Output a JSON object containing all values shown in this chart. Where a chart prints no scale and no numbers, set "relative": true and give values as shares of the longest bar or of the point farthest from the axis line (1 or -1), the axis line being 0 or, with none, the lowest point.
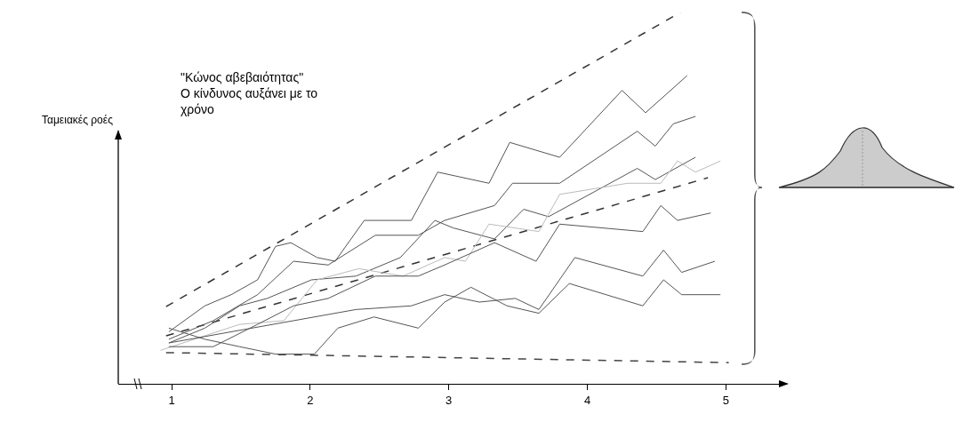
{
  "chart_data": {
    "type": "line",
    "relative": true,
    "ylabel": "Ταμειακές ροές",
    "annotations": [
      "\"Κώνος αβεβαιότητας\"\nΟ κίνδυνος αυξάνει με το\nχρόνο"
    ],
    "xlim": [
      0.615,
      5.44
    ],
    "xticks": [
      1,
      2,
      3,
      4,
      5
    ],
    "marker": "none",
    "line_style": "solid",
    "series": [
      {
        "color": "#333333",
        "line_style": "dashed",
        "x": [
          0.96,
          4.67
        ],
        "values": [
          0.208,
          1.0
        ]
      },
      {
        "color": "#444444",
        "line_style": "dashed",
        "x": [
          0.96,
          5.02
        ],
        "values": [
          0.084,
          0.057
        ]
      },
      {
        "color": "#333333",
        "line_style": "dashed",
        "x": [
          0.96,
          4.87
        ],
        "values": [
          0.129,
          0.555
        ]
      },
      {
        "color": "#555555",
        "x": [
          0.98,
          1.24,
          1.43,
          1.62,
          1.75,
          1.86,
          2.05,
          2.18,
          2.39,
          2.73,
          2.92,
          3.29,
          3.44,
          3.8,
          4.25,
          4.42,
          4.72
        ],
        "values": [
          0.14,
          0.21,
          0.24,
          0.28,
          0.37,
          0.38,
          0.34,
          0.33,
          0.44,
          0.44,
          0.57,
          0.54,
          0.65,
          0.61,
          0.79,
          0.73,
          0.83
        ]
      },
      {
        "color": "#555555",
        "x": [
          0.98,
          1.3,
          1.62,
          1.88,
          2.13,
          2.47,
          2.78,
          2.97,
          3.33,
          3.46,
          3.8,
          4.36,
          4.49,
          4.62,
          4.78
        ],
        "values": [
          0.12,
          0.17,
          0.24,
          0.33,
          0.32,
          0.4,
          0.4,
          0.44,
          0.48,
          0.54,
          0.54,
          0.68,
          0.64,
          0.7,
          0.72
        ]
      },
      {
        "color": "#555555",
        "x": [
          0.98,
          1.24,
          1.49,
          1.69,
          2.01,
          2.33,
          2.65,
          2.9,
          3.03,
          3.33,
          3.54,
          3.72,
          4.36,
          4.49,
          4.78
        ],
        "values": [
          0.11,
          0.15,
          0.21,
          0.23,
          0.28,
          0.29,
          0.34,
          0.44,
          0.42,
          0.39,
          0.47,
          0.45,
          0.58,
          0.55,
          0.61
        ]
      },
      {
        "color": "#bbbbbb",
        "x": [
          0.92,
          1.49,
          1.81,
          2.05,
          2.35,
          2.67,
          2.97,
          3.12,
          3.29,
          3.65,
          3.8,
          4.29,
          4.53,
          4.65,
          4.78,
          4.96
        ],
        "values": [
          0.09,
          0.16,
          0.17,
          0.28,
          0.31,
          0.29,
          0.34,
          0.33,
          0.43,
          0.41,
          0.51,
          0.54,
          0.54,
          0.6,
          0.57,
          0.6
        ]
      },
      {
        "color": "#555555",
        "x": [
          0.98,
          1.3,
          1.62,
          1.88,
          2.13,
          2.47,
          2.78,
          2.97,
          3.33,
          3.63,
          3.8,
          4.4,
          4.53,
          4.65,
          4.89
        ],
        "values": [
          0.1,
          0.1,
          0.16,
          0.21,
          0.23,
          0.29,
          0.29,
          0.32,
          0.38,
          0.33,
          0.43,
          0.41,
          0.48,
          0.44,
          0.46
        ]
      },
      {
        "color": "#555555",
        "x": [
          0.98,
          1.43,
          1.88,
          2.33,
          2.73,
          2.97,
          3.22,
          3.48,
          3.65,
          3.91,
          4.4,
          4.55,
          4.68,
          4.92
        ],
        "values": [
          0.11,
          0.14,
          0.17,
          0.2,
          0.21,
          0.24,
          0.22,
          0.23,
          0.2,
          0.34,
          0.29,
          0.36,
          0.3,
          0.33
        ]
      },
      {
        "color": "#555555",
        "x": [
          0.98,
          1.24,
          1.49,
          1.75,
          2.03,
          2.2,
          2.46,
          2.78,
          2.97,
          3.16,
          3.42,
          3.65,
          3.87,
          4.4,
          4.55,
          4.68,
          4.96
        ],
        "values": [
          0.15,
          0.12,
          0.1,
          0.08,
          0.08,
          0.15,
          0.18,
          0.15,
          0.22,
          0.26,
          0.21,
          0.19,
          0.27,
          0.21,
          0.28,
          0.24,
          0.24
        ]
      }
    ]
  }
}
